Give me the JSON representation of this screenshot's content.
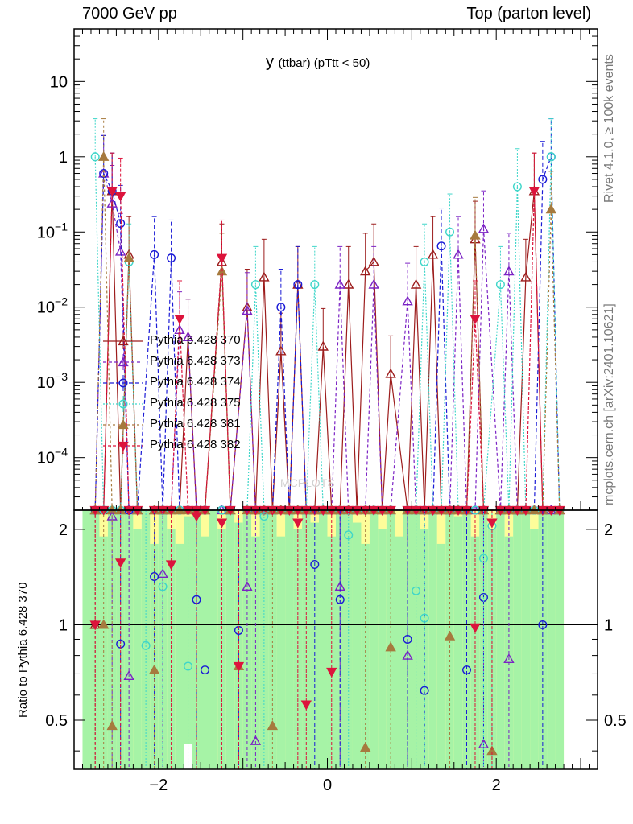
{
  "header": {
    "left": "7000 GeV pp",
    "right": "Top (parton level)"
  },
  "side_text": {
    "rivet": "Rivet 4.1.0, ≥ 100k events",
    "mcplots": "mcplots.cern.ch [arXiv:2401.10621]"
  },
  "watermark": "MCPLOTS",
  "ratio_ylabel": "Ratio to Pythia 6.428 370",
  "colors": {
    "band_green": "#a6f3a6",
    "band_yellow": "#fdfd9a",
    "s370": "#9c1c1c",
    "s373": "#7b22c4",
    "s374": "#1a1ad6",
    "s375": "#3fd6c9",
    "s381": "#a67a3e",
    "s382": "#dc143c"
  },
  "chart_data": [
    {
      "type": "line",
      "title": "y",
      "subtitle": "(ttbar)  (pTtt < 50)",
      "xlabel": "",
      "ylabel": "",
      "xlim": [
        -3.0,
        3.2
      ],
      "ylim": [
        2e-05,
        50
      ],
      "yscale": "log",
      "y_tick_labels": [
        {
          "v": 10,
          "text": "10",
          "sup": ""
        },
        {
          "v": 1,
          "text": "1",
          "sup": ""
        },
        {
          "v": 0.1,
          "text": "10",
          "sup": "−1"
        },
        {
          "v": 0.01,
          "text": "10",
          "sup": "−2"
        },
        {
          "v": 0.001,
          "text": "10",
          "sup": "−3"
        },
        {
          "v": 0.0001,
          "text": "10",
          "sup": "−4"
        }
      ],
      "x": [
        -2.75,
        -2.65,
        -2.55,
        -2.45,
        -2.35,
        -2.25,
        -2.05,
        -1.95,
        -1.85,
        -1.75,
        -1.65,
        -1.55,
        -1.45,
        -1.25,
        -1.15,
        -0.95,
        -0.85,
        -0.75,
        -0.65,
        -0.55,
        -0.45,
        -0.35,
        -0.25,
        -0.15,
        -0.05,
        0.05,
        0.15,
        0.25,
        0.35,
        0.45,
        0.55,
        0.65,
        0.75,
        0.95,
        1.05,
        1.15,
        1.25,
        1.35,
        1.45,
        1.55,
        1.65,
        1.75,
        1.85,
        2.05,
        2.15,
        2.25,
        2.35,
        2.45,
        2.55,
        2.65,
        2.75
      ],
      "legend": [
        "Pythia 6.428 370",
        "Pythia 6.428 373",
        "Pythia 6.428 374",
        "Pythia 6.428 375",
        "Pythia 6.428 381",
        "Pythia 6.428 382"
      ],
      "series": [
        {
          "name": "Pythia 6.428 370",
          "marker": "triangle-up-open",
          "values": [
            0.0,
            0.0,
            0.35,
            0.0,
            0.05,
            0.0,
            0.0,
            0.0,
            0.0,
            0.0,
            0.004,
            0.0,
            0.0,
            0.04,
            0.0,
            0.01,
            0.0,
            0.025,
            0.0,
            0.0026,
            0.0,
            0.02,
            0.0,
            0.0,
            0.003,
            0.0,
            0.0,
            0.02,
            0.0,
            0.03,
            0.04,
            0.0,
            0.0013,
            0.0,
            0.02,
            0.0,
            0.05,
            0.0,
            0.0,
            0.0,
            0.0,
            0.08,
            0.0,
            0.0,
            0.0,
            0.0,
            0.025,
            0.35,
            0.0,
            0.0,
            0.0
          ]
        },
        {
          "name": "Pythia 6.428 373",
          "marker": "triangle-up-open",
          "values": [
            0.0,
            0.6,
            0.24,
            0.055,
            0.0,
            0.0,
            0.0,
            0.0,
            0.0,
            0.005,
            0.004,
            0.0,
            0.0,
            0.0,
            0.0,
            0.009,
            0.0,
            0.0,
            0.0,
            0.0,
            0.0,
            0.0,
            0.0,
            0.0,
            0.0,
            0.0,
            0.02,
            0.0,
            0.0,
            0.0,
            0.02,
            0.0,
            0.0,
            0.012,
            0.0,
            0.0,
            0.0,
            0.0,
            0.0,
            0.05,
            0.0,
            0.0,
            0.11,
            0.0,
            0.03,
            0.0,
            0.0,
            0.0,
            0.0,
            0.0,
            0.0
          ]
        },
        {
          "name": "Pythia 6.428 374",
          "marker": "circle-open",
          "values": [
            0.0,
            0.6,
            0.35,
            0.13,
            0.0,
            0.0,
            0.05,
            0.0,
            0.045,
            0.0,
            0.0,
            0.0,
            0.0,
            0.0,
            0.0,
            0.0,
            0.0,
            0.0,
            0.0,
            0.01,
            0.0,
            0.02,
            0.0,
            0.0,
            0.0,
            0.0,
            0.0,
            0.0,
            0.0,
            0.0,
            0.0,
            0.0,
            0.0,
            0.0,
            0.0,
            0.0,
            0.0,
            0.065,
            0.0,
            0.0,
            0.0,
            0.0,
            0.0,
            0.0,
            0.0,
            0.0,
            0.0,
            0.0,
            0.5,
            1.0,
            0.0
          ]
        },
        {
          "name": "Pythia 6.428 375",
          "marker": "circle-open",
          "values": [
            1.0,
            0.0,
            0.0,
            0.0,
            0.04,
            0.0,
            0.0,
            0.0,
            0.0,
            0.0,
            0.0,
            0.0,
            0.0,
            0.0,
            0.0,
            0.0,
            0.02,
            0.0,
            0.0,
            0.0,
            0.0,
            0.0,
            0.0,
            0.02,
            0.0,
            0.0,
            0.0,
            0.0,
            0.0,
            0.0,
            0.0,
            0.0,
            0.0,
            0.0,
            0.0,
            0.04,
            0.0,
            0.0,
            0.1,
            0.0,
            0.0,
            0.0,
            0.0,
            0.02,
            0.0,
            0.4,
            0.0,
            0.0,
            0.0,
            1.0,
            0.0
          ]
        },
        {
          "name": "Pythia 6.428 381",
          "marker": "triangle-up-full",
          "values": [
            0.0,
            1.0,
            0.0,
            0.0,
            0.045,
            0.0,
            0.0,
            0.0,
            0.0,
            0.0,
            0.0,
            0.0,
            0.0,
            0.03,
            0.0,
            0.0,
            0.0,
            0.0,
            0.0,
            0.0,
            0.0,
            0.0,
            0.0,
            0.0,
            0.0,
            0.0,
            0.0,
            0.0,
            0.0,
            0.0,
            0.0,
            0.0,
            0.0,
            0.0,
            0.0,
            0.0,
            0.0,
            0.0,
            0.0,
            0.0,
            0.0,
            0.09,
            0.0,
            0.0,
            0.0,
            0.0,
            0.0,
            0.0,
            0.0,
            0.2,
            0.0
          ]
        },
        {
          "name": "Pythia 6.428 382",
          "marker": "triangle-down-full",
          "values": [
            0.0,
            0.0,
            0.35,
            0.3,
            0.0,
            0.0,
            0.0,
            0.0,
            0.0,
            0.007,
            0.0,
            0.0,
            0.0,
            0.045,
            0.0,
            0.0,
            0.0,
            0.0,
            0.0,
            0.0,
            0.0,
            0.0,
            0.0,
            0.0,
            0.0,
            0.0,
            0.0,
            0.0,
            0.0,
            0.0,
            0.0,
            0.0,
            0.0,
            0.0,
            0.0,
            0.0,
            0.0,
            0.0,
            0.0,
            0.0,
            0.0,
            0.007,
            0.0,
            0.0,
            0.0,
            0.0,
            0.0,
            0.35,
            0.0,
            0.0,
            0.0
          ]
        }
      ]
    },
    {
      "type": "line",
      "title": "",
      "xlabel": "",
      "ylabel": "Ratio to Pythia 6.428 370",
      "xlim": [
        -3.0,
        3.2
      ],
      "ylim": [
        0.35,
        2.3
      ],
      "yscale": "log",
      "x_tick_labels": [
        {
          "v": -2,
          "text": "−2"
        },
        {
          "v": 0,
          "text": "0"
        },
        {
          "v": 2,
          "text": "2"
        }
      ],
      "y_tick_labels": [
        {
          "v": 2,
          "text": "2"
        },
        {
          "v": 1,
          "text": "1"
        },
        {
          "v": 0.5,
          "text": "0.5"
        }
      ],
      "reference_line": 1.0,
      "uncertainty_band": {
        "x_edges": [
          -2.9,
          -2.8,
          -2.7,
          -2.6,
          -2.5,
          -2.4,
          -2.3,
          -2.2,
          -2.1,
          -2.0,
          -1.9,
          -1.8,
          -1.7,
          -1.6,
          -1.5,
          -1.4,
          -1.3,
          -1.2,
          -1.1,
          -1.0,
          -0.9,
          -0.8,
          -0.7,
          -0.6,
          -0.5,
          -0.4,
          -0.3,
          -0.2,
          -0.1,
          0.0,
          0.1,
          0.2,
          0.3,
          0.4,
          0.5,
          0.6,
          0.7,
          0.8,
          0.9,
          1.0,
          1.1,
          1.2,
          1.3,
          1.4,
          1.5,
          1.6,
          1.7,
          1.8,
          1.9,
          2.0,
          2.1,
          2.2,
          2.3,
          2.4,
          2.5,
          2.6,
          2.7,
          2.8
        ],
        "green_high": [
          2.3,
          2.3,
          1.9,
          2.3,
          2.3,
          2.3,
          2.0,
          2.3,
          1.8,
          2.3,
          2.0,
          1.8,
          2.2,
          2.3,
          1.9,
          2.3,
          2.0,
          2.3,
          2.1,
          2.3,
          1.9,
          2.3,
          2.3,
          1.9,
          2.3,
          2.0,
          2.3,
          2.1,
          2.3,
          1.9,
          2.3,
          2.3,
          2.1,
          1.8,
          2.3,
          2.0,
          2.3,
          1.9,
          2.3,
          2.3,
          2.0,
          2.3,
          1.8,
          2.3,
          2.2,
          2.3,
          1.9,
          2.3,
          2.0,
          2.3,
          1.9,
          2.3,
          2.3,
          2.0,
          2.3,
          2.3,
          2.3
        ],
        "yellow_high": [
          2.3,
          2.3,
          2.3,
          2.3,
          2.3,
          2.3,
          2.3,
          2.3,
          2.3,
          2.3,
          2.3,
          2.3,
          2.3,
          2.3,
          2.3,
          2.3,
          2.3,
          2.3,
          2.3,
          2.3,
          2.3,
          2.3,
          2.3,
          2.3,
          2.3,
          2.3,
          2.3,
          2.3,
          2.3,
          2.3,
          2.3,
          2.3,
          2.3,
          2.3,
          2.3,
          2.3,
          2.3,
          2.3,
          2.3,
          2.3,
          2.3,
          2.3,
          2.3,
          2.3,
          2.3,
          2.3,
          2.3,
          2.3,
          2.3,
          2.3,
          2.3,
          2.3,
          2.3,
          2.3,
          2.3,
          2.3,
          2.3
        ],
        "green_low": [
          0.35,
          0.35,
          0.35,
          0.35,
          0.35,
          0.35,
          0.35,
          0.35,
          0.35,
          0.35,
          0.35,
          0.35,
          0.42,
          0.35,
          0.35,
          0.35,
          0.35,
          0.35,
          0.35,
          0.35,
          0.35,
          0.35,
          0.35,
          0.35,
          0.35,
          0.35,
          0.35,
          0.35,
          0.35,
          0.35,
          0.35,
          0.35,
          0.35,
          0.35,
          0.35,
          0.35,
          0.35,
          0.35,
          0.35,
          0.35,
          0.35,
          0.35,
          0.35,
          0.35,
          0.35,
          0.35,
          0.35,
          0.35,
          0.35,
          0.35,
          0.35,
          0.35,
          0.35,
          0.35,
          0.35,
          0.35,
          0.35
        ]
      },
      "series": [
        {
          "name": "Pythia 6.428 370",
          "x": [
            -2.75
          ],
          "values": [
            1.0
          ]
        },
        {
          "name": "Pythia 6.428 373",
          "x": [
            -2.55,
            -2.35,
            -1.95,
            -0.95,
            -0.85,
            0.15,
            0.95,
            1.85,
            2.15
          ],
          "values": [
            2.2,
            0.69,
            1.45,
            1.32,
            0.43,
            1.32,
            0.8,
            0.42,
            0.78
          ]
        },
        {
          "name": "Pythia 6.428 374",
          "x": [
            -2.45,
            -2.05,
            -1.55,
            -1.45,
            -1.05,
            -0.15,
            0.15,
            0.95,
            1.15,
            1.65,
            1.85,
            2.55
          ],
          "values": [
            0.87,
            1.42,
            1.2,
            0.72,
            0.96,
            1.55,
            1.2,
            0.9,
            0.62,
            0.72,
            1.22,
            1.0
          ]
        },
        {
          "name": "Pythia 6.428 375",
          "x": [
            -2.15,
            -1.95,
            -1.65,
            -0.75,
            0.25,
            1.05,
            1.15,
            1.85,
            1.95
          ],
          "values": [
            0.86,
            1.32,
            0.74,
            2.2,
            1.92,
            1.28,
            1.05,
            1.62,
            2.05
          ]
        },
        {
          "name": "Pythia 6.428 381",
          "x": [
            -2.65,
            -2.55,
            -2.05,
            -1.05,
            -0.65,
            0.45,
            0.75,
            1.45,
            1.95
          ],
          "values": [
            1.0,
            0.48,
            0.72,
            0.74,
            0.48,
            0.41,
            0.85,
            0.92,
            0.4
          ]
        },
        {
          "name": "Pythia 6.428 382",
          "x": [
            -2.75,
            -2.45,
            -1.85,
            -1.55,
            -1.25,
            -1.05,
            -0.35,
            -0.25,
            0.05,
            1.75,
            1.95
          ],
          "values": [
            1.0,
            1.57,
            1.55,
            2.2,
            2.1,
            0.74,
            2.1,
            0.56,
            0.71,
            0.98,
            2.1
          ]
        }
      ]
    }
  ]
}
